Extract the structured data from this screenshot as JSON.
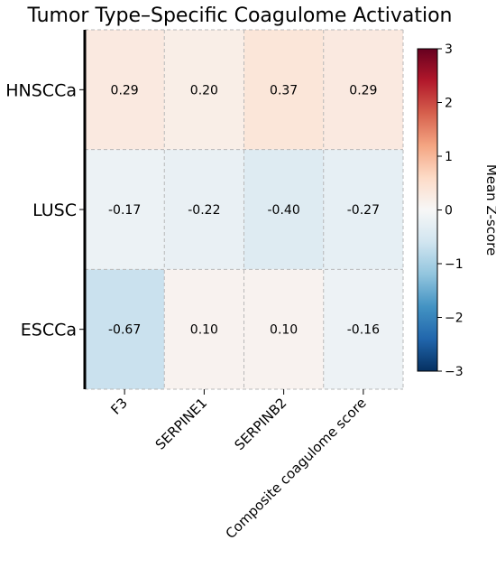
{
  "chart_data": {
    "type": "heatmap",
    "title": "Tumor Type–Specific Coagulome Activation",
    "rows": [
      "HNSCCa",
      "LUSC",
      "ESCCa"
    ],
    "columns": [
      "F3",
      "SERPINE1",
      "SERPINB2",
      "Composite coagulome score"
    ],
    "values": [
      [
        0.29,
        0.2,
        0.37,
        0.29
      ],
      [
        -0.17,
        -0.22,
        -0.4,
        -0.27
      ],
      [
        -0.67,
        0.1,
        0.1,
        -0.16
      ]
    ],
    "value_labels": [
      [
        "0.29",
        "0.20",
        "0.37",
        "0.29"
      ],
      [
        "-0.17",
        "-0.22",
        "-0.40",
        "-0.27"
      ],
      [
        "-0.67",
        "0.10",
        "0.10",
        "-0.16"
      ]
    ],
    "colorbar": {
      "label": "Mean Z-score",
      "range": [
        -3,
        3
      ],
      "ticks": [
        -3,
        -2,
        -1,
        0,
        1,
        2,
        3
      ],
      "tick_labels": [
        "−3",
        "−2",
        "−1",
        "0",
        "1",
        "2",
        "3"
      ],
      "colormap": "RdBu_r",
      "position": "right"
    },
    "grid": true,
    "colors": {
      "low": "#053061",
      "mid": "#f7f7f7",
      "high": "#67001f"
    }
  }
}
